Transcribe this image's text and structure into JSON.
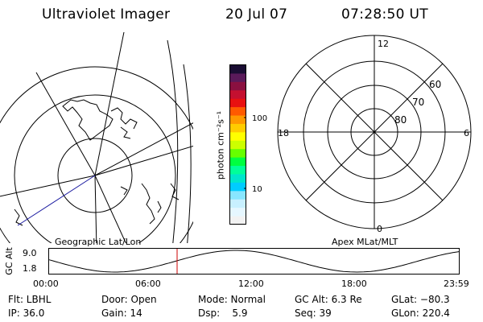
{
  "header": {
    "title": "Ultraviolet Imager",
    "date": "20 Jul 07",
    "time": "07:28:50 UT"
  },
  "colorbar": {
    "unit_label": "photon cm⁻²s⁻¹",
    "ticks": [
      "100",
      "10"
    ],
    "colors": [
      "#1a0d33",
      "#5a1a5a",
      "#8a1040",
      "#c41030",
      "#e81010",
      "#ff5a00",
      "#ff9900",
      "#ffcc00",
      "#ffff00",
      "#ccff00",
      "#66ff00",
      "#00ff40",
      "#00ff99",
      "#00e6cc",
      "#00ccff",
      "#88e6ff",
      "#c8f0ff",
      "#e6f7ff",
      "#f2f2f2"
    ]
  },
  "left_map": {
    "projection_label": "Geographic Lat/Lon"
  },
  "right_map": {
    "projection_label": "Apex MLat/MLT",
    "mlt_labels": {
      "top": "12",
      "left": "18",
      "right": "6",
      "bottom": "0"
    },
    "lat_labels": [
      "60",
      "70",
      "80"
    ]
  },
  "orbit": {
    "ylabel": "GC Alt",
    "y_ticks": [
      "9.0",
      "1.8"
    ],
    "x_ticks": [
      "00:00",
      "06:00",
      "12:00",
      "18:00",
      "23:59"
    ],
    "current_time_marker": "07:28:50",
    "line_color": "#000000",
    "marker_color": "#cc0000"
  },
  "status": {
    "rows": [
      [
        "Flt: LBHL",
        "Door: Open",
        "Mode: Normal",
        "GC Alt: 6.3 Re",
        "GLat: −80.3"
      ],
      [
        "IP: 36.0",
        "Gain: 14",
        "Dsp:    5.9",
        "Seq: 39",
        "GLon: 220.4"
      ]
    ]
  }
}
